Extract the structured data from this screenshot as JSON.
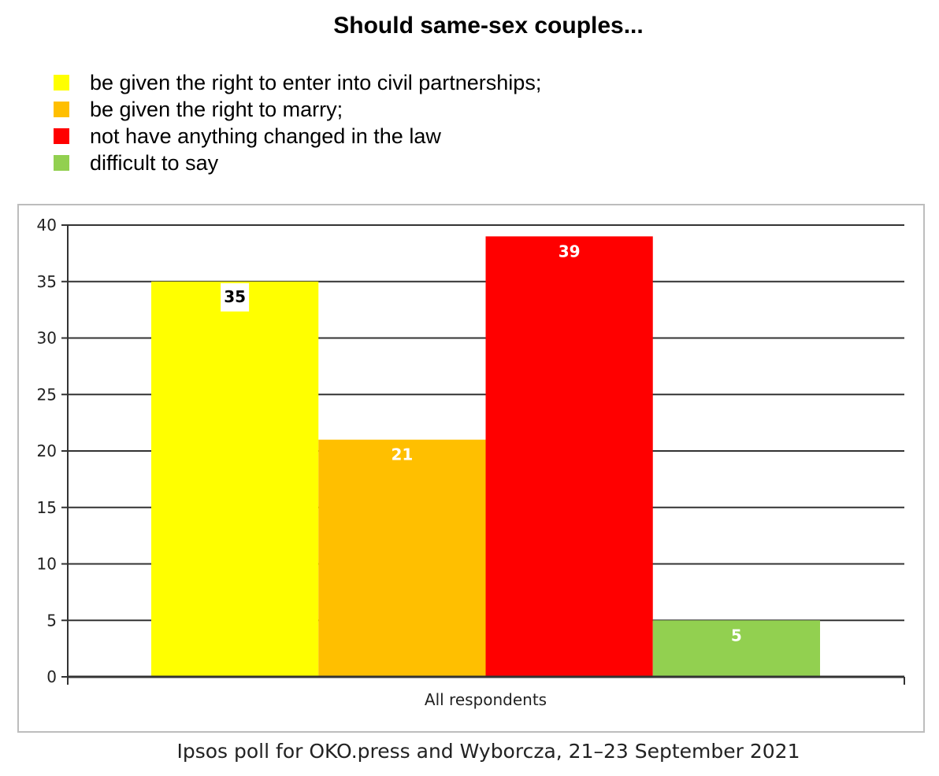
{
  "chart_data": {
    "type": "bar",
    "title": "Should same-sex couples...",
    "categories": [
      "All respondents"
    ],
    "series": [
      {
        "name": "be given the right to enter into civil partnerships;",
        "color": "#ffff00",
        "values": [
          35
        ],
        "label_color": "#000000",
        "label_bg": "#ffffff"
      },
      {
        "name": "be given the right to marry;",
        "color": "#ffbf00",
        "values": [
          21
        ],
        "label_color": "#ffffff"
      },
      {
        "name": "not have anything changed in the law",
        "color": "#ff0000",
        "values": [
          39
        ],
        "label_color": "#ffffff"
      },
      {
        "name": "difficult to say",
        "color": "#92d050",
        "values": [
          5
        ],
        "label_color": "#ffffff"
      }
    ],
    "ylim": [
      0,
      40
    ],
    "yticks": [
      0,
      5,
      10,
      15,
      20,
      25,
      30,
      35,
      40
    ],
    "xlabel": "",
    "ylabel": "",
    "grid": true,
    "legend_position": "top-left"
  },
  "caption": "Ipsos poll for OKO.press and Wyborcza, 21–23 September 2021"
}
